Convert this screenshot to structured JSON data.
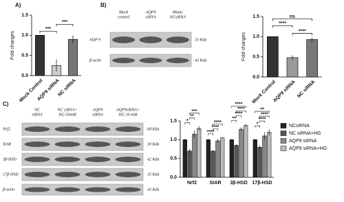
{
  "panel_labels": [
    "A)",
    "B)",
    "C)"
  ],
  "blots": [
    {
      "headers": [
        [
          "Mock",
          "control"
        ],
        [
          "AQP9",
          "siRNA"
        ],
        [
          "Mimic",
          "NCsiRNA"
        ]
      ],
      "rows": [
        "AQP 9",
        "β-actin"
      ],
      "sizes": [
        "33 Kda",
        "43 Kda"
      ]
    },
    {
      "headers": [
        [
          "NC",
          "siRNA"
        ],
        [
          "NC siRNA+",
          "HG 30mM"
        ],
        [
          "AQP9",
          "siRNA"
        ],
        [
          "AQP9siRNA+",
          "HG 30 mM"
        ]
      ],
      "rows": [
        "Nrf2",
        "StAR",
        "3β-HSD",
        "17β-HSD",
        "β-actin"
      ],
      "sizes": [
        "68 Kda",
        "30 Kda",
        "42 Kda",
        "35 Kda",
        "43 Kda"
      ]
    }
  ],
  "chart_data": [
    {
      "type": "bar",
      "y_label": "Fold changes",
      "categories": [
        "Mock Control",
        "AQP9 siRNA",
        "NC siRNA"
      ],
      "values": [
        1.0,
        0.25,
        0.9
      ],
      "errors": [
        0.0,
        0.15,
        0.1
      ],
      "colors": [
        "#333333",
        "#cccccc",
        "#777777"
      ],
      "ylim": [
        0,
        1.5
      ],
      "yticks": [
        {
          "value": 0,
          "label": "0.0"
        },
        {
          "value": 0.5,
          "label": "0.5"
        },
        {
          "value": 1,
          "label": "1.0"
        },
        {
          "value": 1.5,
          "label": "1.5"
        }
      ],
      "annotations": [
        {
          "text": "***",
          "between": [
            0,
            1
          ]
        },
        {
          "text": "***",
          "between": [
            1,
            2
          ]
        }
      ]
    },
    {
      "type": "bar",
      "y_label": "Fold changes",
      "categories": [
        "Mock Control",
        "AQP9 siRNA",
        "NC siRNA"
      ],
      "values": [
        1.0,
        0.48,
        0.93
      ],
      "errors": [
        0.0,
        0.06,
        0.05
      ],
      "colors": [
        "#333333",
        "#999999",
        "#777777"
      ],
      "ylim": [
        0,
        1.5
      ],
      "yticks": [
        {
          "value": 0,
          "label": "0.0"
        },
        {
          "value": 0.5,
          "label": "0.5"
        },
        {
          "value": 1,
          "label": "1.0"
        },
        {
          "value": 1.5,
          "label": "1.5"
        }
      ],
      "annotations": [
        {
          "text": "****",
          "between": [
            1,
            2
          ]
        },
        {
          "text": "****",
          "between": [
            0,
            1
          ]
        },
        {
          "text": "ns",
          "between": [
            0,
            2
          ]
        }
      ]
    },
    {
      "type": "grouped-bar",
      "categories": [
        "Nrf2",
        "StAR",
        "3β-HSD",
        "17β-HSD"
      ],
      "series": [
        {
          "name": "NCsiRNA",
          "color": "#222222",
          "values": [
            1.0,
            1.0,
            1.0,
            1.0
          ],
          "errors": [
            0.02,
            0.02,
            0.02,
            0.02
          ]
        },
        {
          "name": "NC siRNA+HG",
          "color": "#555555",
          "values": [
            0.7,
            0.7,
            0.85,
            0.8
          ],
          "errors": [
            0.06,
            0.02,
            0.03,
            0.05
          ]
        },
        {
          "name": "AQP9 siRNA",
          "color": "#888888",
          "values": [
            1.15,
            0.97,
            1.28,
            1.1
          ],
          "errors": [
            0.1,
            0.05,
            0.05,
            0.1
          ]
        },
        {
          "name": "AQP9 siRNA+HG",
          "color": "#bbbbbb",
          "values": [
            1.3,
            1.05,
            1.38,
            1.2
          ],
          "errors": [
            0.06,
            0.02,
            0.04,
            0.08
          ]
        }
      ],
      "ylim": [
        0,
        1.5
      ],
      "yticks": [
        {
          "value": 0,
          "label": "0.0"
        },
        {
          "value": 0.5,
          "label": "0.5"
        },
        {
          "value": 1,
          "label": "1.0"
        },
        {
          "value": 1.5,
          "label": "1.5"
        }
      ],
      "annotations": [
        {
          "text": "*",
          "group": 0,
          "between": [
            0,
            1
          ]
        },
        {
          "text": "**",
          "group": 0,
          "between": [
            1,
            2
          ]
        },
        {
          "text": "***",
          "group": 0,
          "between": [
            1,
            3
          ]
        },
        {
          "text": "****",
          "group": 1,
          "between": [
            0,
            1
          ]
        },
        {
          "text": "****",
          "group": 1,
          "between": [
            1,
            2
          ]
        },
        {
          "text": "****",
          "group": 1,
          "between": [
            1,
            3
          ]
        },
        {
          "text": "**",
          "group": 2,
          "between": [
            0,
            1
          ]
        },
        {
          "text": "****",
          "group": 2,
          "between": [
            1,
            2
          ]
        },
        {
          "text": "****",
          "group": 2,
          "between": [
            1,
            3
          ]
        },
        {
          "text": "****",
          "group": 2,
          "between": [
            0,
            3
          ]
        },
        {
          "text": "*",
          "group": 3,
          "between": [
            0,
            1
          ]
        },
        {
          "text": "****",
          "group": 3,
          "between": [
            1,
            2
          ]
        },
        {
          "text": "****",
          "group": 3,
          "between": [
            1,
            3
          ]
        },
        {
          "text": "**",
          "group": 3,
          "between": [
            0,
            3
          ]
        }
      ]
    }
  ]
}
